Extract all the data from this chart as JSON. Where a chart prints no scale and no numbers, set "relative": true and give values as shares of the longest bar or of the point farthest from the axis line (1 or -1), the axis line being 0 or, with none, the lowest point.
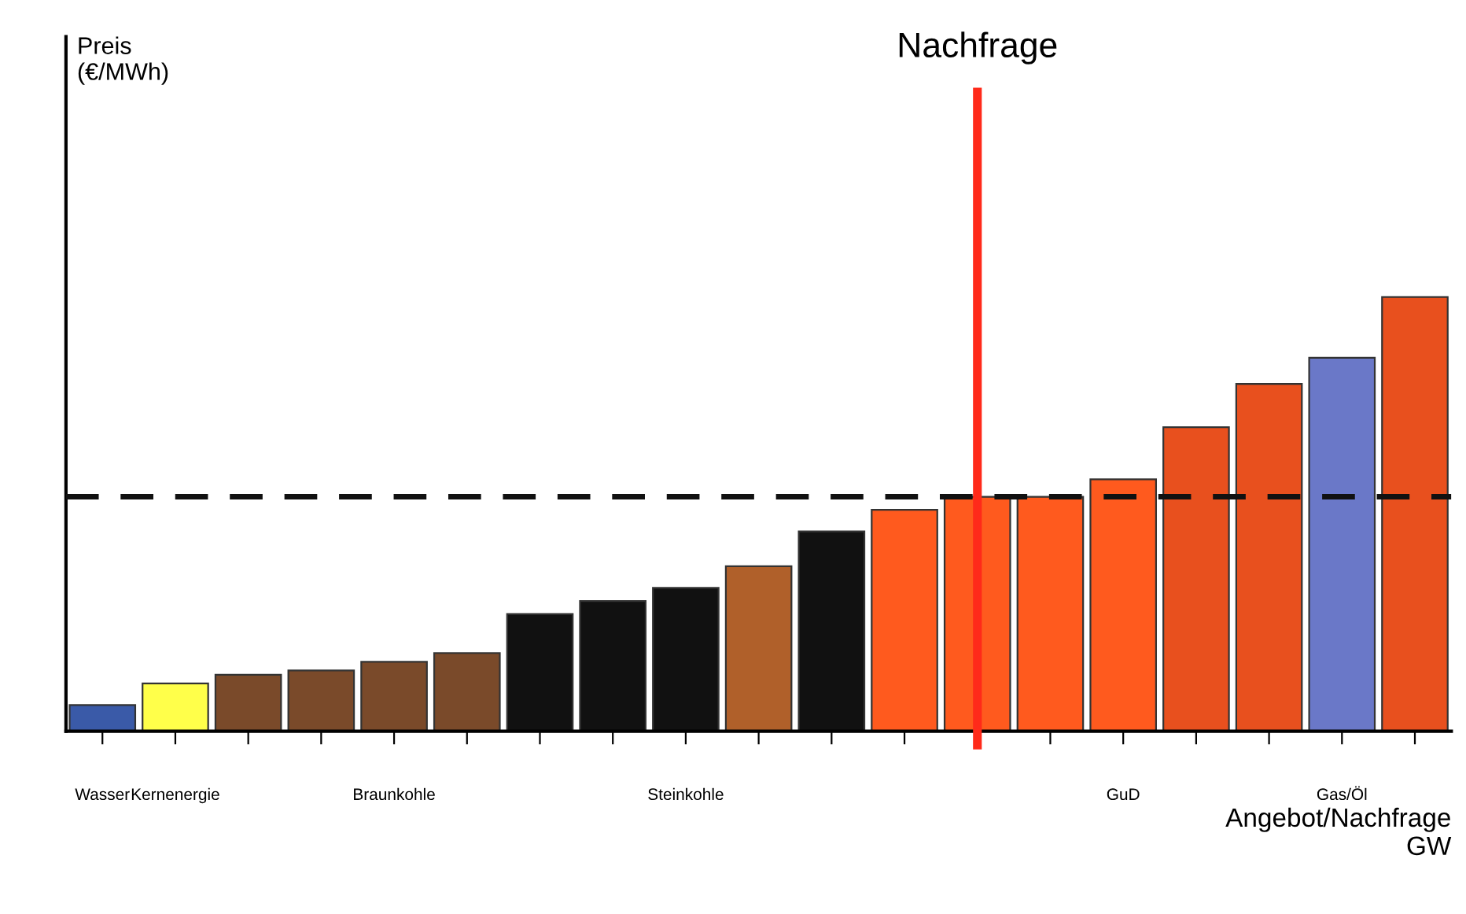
{
  "chart_data": {
    "type": "bar",
    "relative": true,
    "xlabel": "Angebot/Nachfrage\nGW",
    "annotations": [
      "Nachfrage",
      "Preis\n(€/MWh)"
    ],
    "categories": [
      "Wasser",
      "Kernenergie",
      null,
      null,
      "Braunkohle",
      null,
      null,
      null,
      "Steinkohle",
      null,
      null,
      null,
      null,
      null,
      "GuD",
      null,
      null,
      "Gas/Öl",
      null
    ],
    "values": [
      0.06,
      0.11,
      0.13,
      0.14,
      0.16,
      0.18,
      0.27,
      0.3,
      0.33,
      0.38,
      0.46,
      0.51,
      0.54,
      0.54,
      0.58,
      0.7,
      0.8,
      0.86,
      1.0
    ],
    "colors": [
      "#3a5aa8",
      "#ffff4a",
      "#7a4a2a",
      "#7a4a2a",
      "#7a4a2a",
      "#7a4a2a",
      "#111111",
      "#111111",
      "#111111",
      "#b0602a",
      "#111111",
      "#ff5a1e",
      "#ff5a1e",
      "#ff5a1e",
      "#ff5a1e",
      "#e8501e",
      "#e8501e",
      "#6a78c8",
      "#e8501e"
    ],
    "ref_lines": [
      {
        "axis": "y",
        "value": 0.54,
        "color": "#111111",
        "line_style": "dashed"
      }
    ],
    "grid": false
  }
}
